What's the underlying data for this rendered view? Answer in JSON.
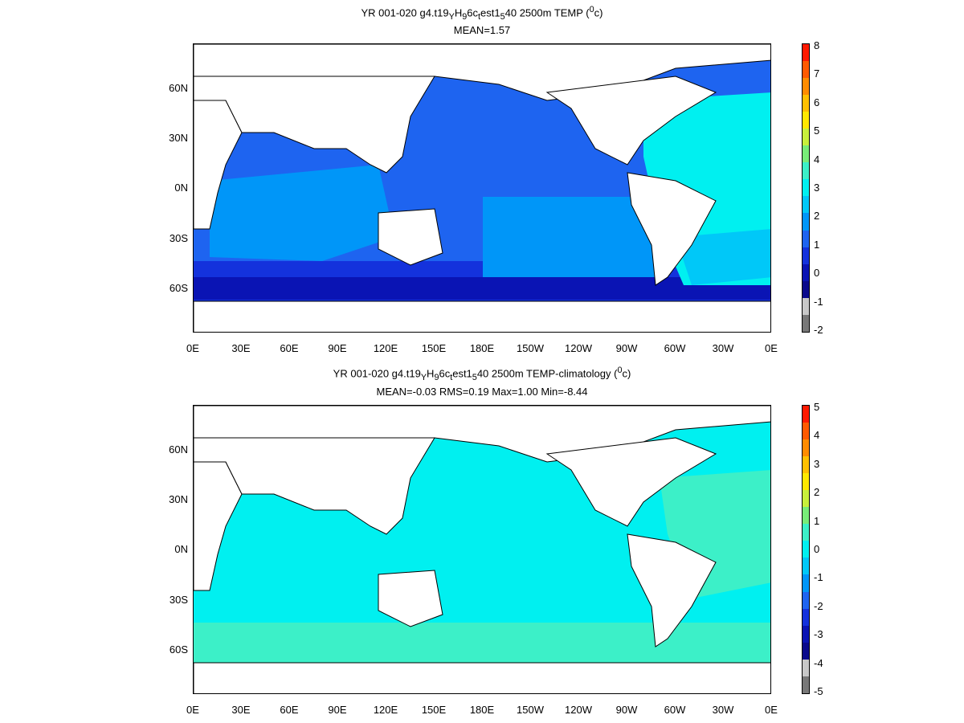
{
  "panel1": {
    "title_line1": "YR 001-020 g4.t19",
    "title_sub1": "Y",
    "title_mid1": "H",
    "title_sub2": "9",
    "title_mid2": "6c",
    "title_sub3": "t",
    "title_mid3": "est1",
    "title_sub4": "5",
    "title_end": "40 2500m TEMP (",
    "title_sup": "0",
    "title_tail": "c)",
    "stats": "MEAN=1.57",
    "colorbar_labels": [
      "8",
      "7",
      "6",
      "5",
      "4",
      "3",
      "2",
      "1",
      "0",
      "-1",
      "-2"
    ]
  },
  "panel2": {
    "title_line1": "YR 001-020 g4.t19",
    "title_sub1": "Y",
    "title_mid1": "H",
    "title_sub2": "9",
    "title_mid2": "6c",
    "title_sub3": "t",
    "title_mid3": "est1",
    "title_sub4": "5",
    "title_end": "40 2500m TEMP-climatology (",
    "title_sup": "0",
    "title_tail": "c)",
    "stats": "MEAN=-0.03   RMS=0.19   Max=1.00   Min=-8.44",
    "colorbar_labels": [
      "5",
      "4",
      "3",
      "2",
      "1",
      "0",
      "-1",
      "-2",
      "-3",
      "-4",
      "-5"
    ]
  },
  "lat_labels": [
    "60N",
    "30N",
    "0N",
    "30S",
    "60S"
  ],
  "lon_labels": [
    "0E",
    "30E",
    "60E",
    "90E",
    "120E",
    "150E",
    "180E",
    "150W",
    "120W",
    "90W",
    "60W",
    "30W",
    "0E"
  ],
  "colors": {
    "cbar1": [
      "#ff1a00",
      "#ff5a00",
      "#ff8c00",
      "#ffc000",
      "#ffe800",
      "#c8f03c",
      "#78ec78",
      "#3cf0c8",
      "#00f0f0",
      "#00c8f8",
      "#0096f8",
      "#1e64f0",
      "#1432dc",
      "#0a14b4",
      "#0a0a8c",
      "#c8c8c8",
      "#787878"
    ],
    "cbar2": [
      "#ff1a00",
      "#ff5a00",
      "#ff8c00",
      "#ffc000",
      "#ffe800",
      "#c8f03c",
      "#78ec78",
      "#3cf0c8",
      "#00f0f0",
      "#00c8f8",
      "#0096f8",
      "#1e64f0",
      "#1432dc",
      "#0a14b4",
      "#0a0a8c",
      "#c8c8c8",
      "#787878"
    ],
    "ocean1": "#1e64f0",
    "ocean1_atl": "#00f0f0",
    "ocean1_south": "#0a14b4",
    "ocean2": "#00f0f0",
    "ocean2_south": "#3cf0c8"
  }
}
